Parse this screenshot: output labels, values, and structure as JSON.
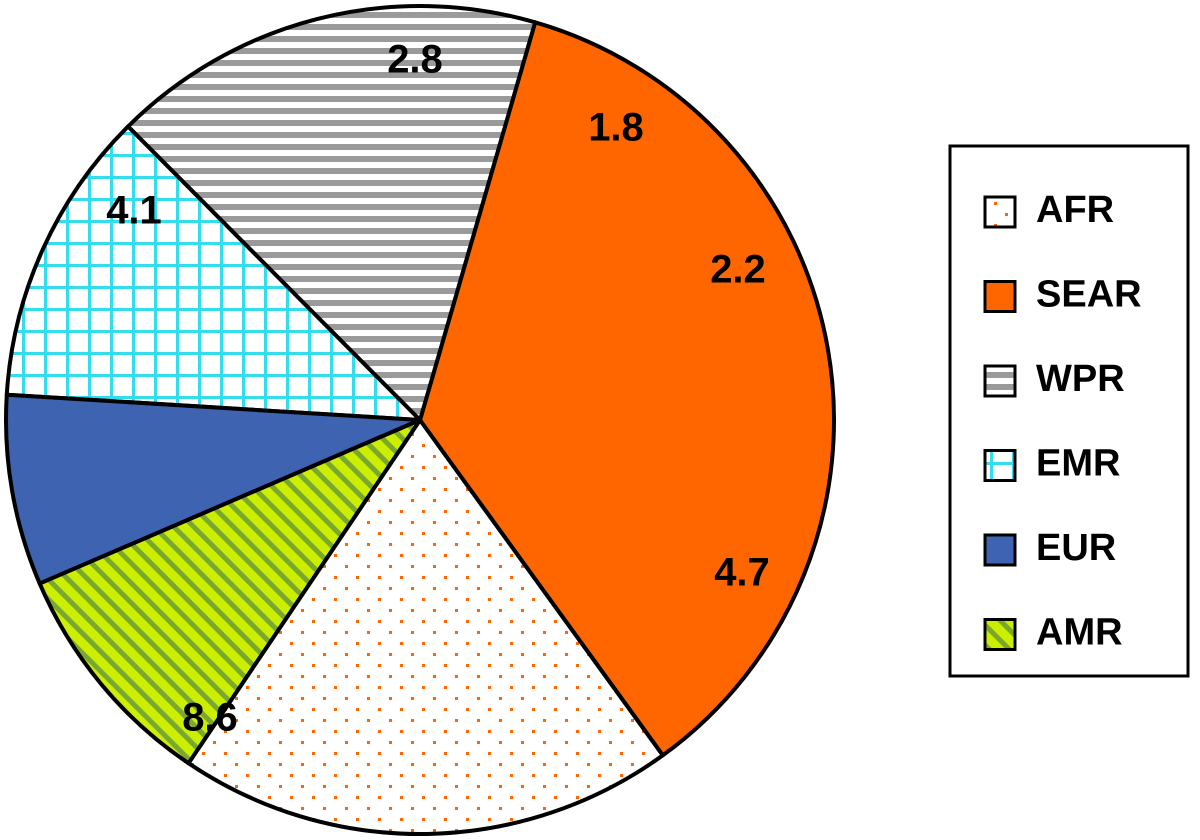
{
  "chart_data": {
    "type": "pie",
    "title": "",
    "slices": [
      {
        "label": "AFR",
        "value": 4.7,
        "value_label": "4.7",
        "color": "#ff6600",
        "pattern": "dots"
      },
      {
        "label": "SEAR",
        "value": 8.6,
        "value_label": "8.6",
        "color": "#ff6600",
        "pattern": "solid"
      },
      {
        "label": "WPR",
        "value": 4.1,
        "value_label": "4.1",
        "color": "#999999",
        "pattern": "horizontal-stripes"
      },
      {
        "label": "EMR",
        "value": 2.8,
        "value_label": "2.8",
        "color": "#33ddee",
        "pattern": "grid"
      },
      {
        "label": "EUR",
        "value": 1.8,
        "value_label": "1.8",
        "color": "#3e63b0",
        "pattern": "solid"
      },
      {
        "label": "AMR",
        "value": 2.2,
        "value_label": "2.2",
        "color": "#ccee00",
        "pattern": "diagonal-stripes"
      }
    ],
    "legend": {
      "position": "right",
      "entries": [
        "AFR",
        "SEAR",
        "WPR",
        "EMR",
        "EUR",
        "AMR"
      ]
    }
  }
}
